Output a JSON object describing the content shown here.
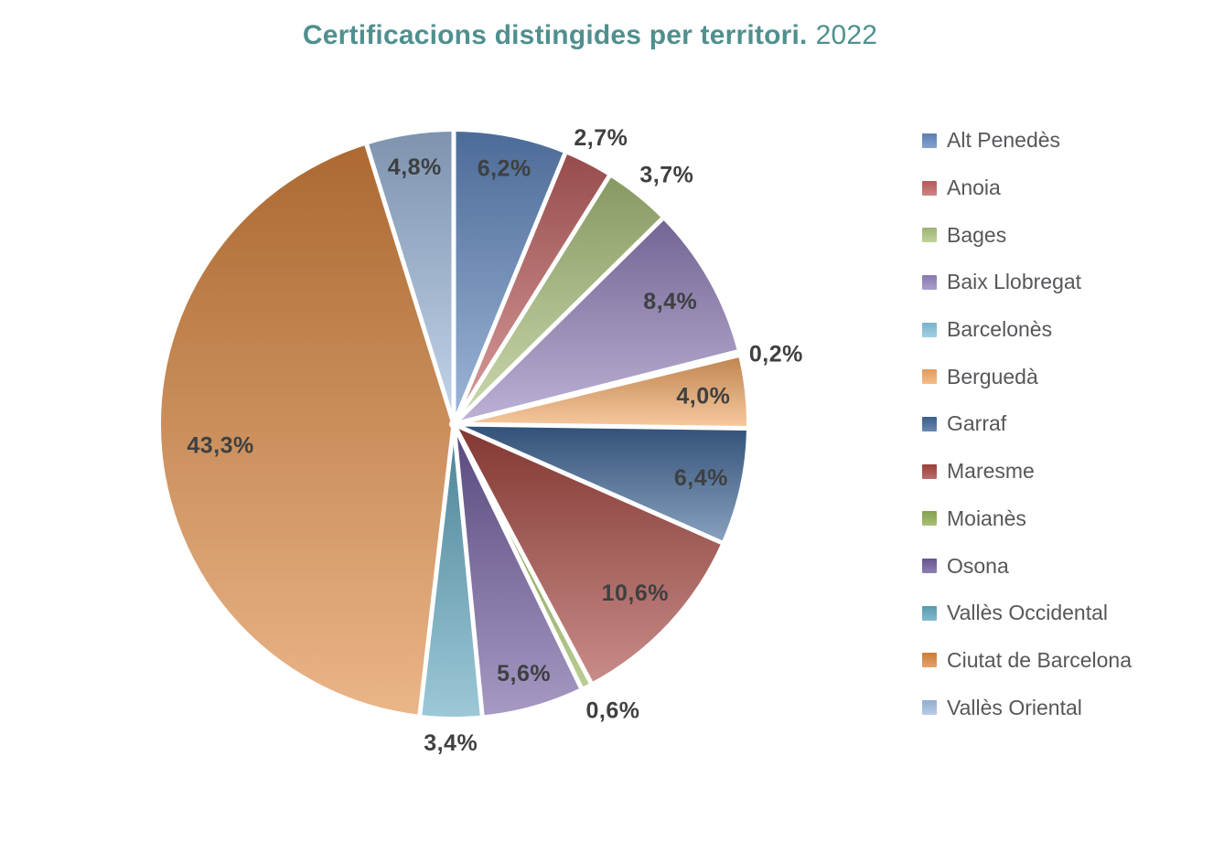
{
  "title": {
    "main": "Certificacions distingides per territori.",
    "year": "2022"
  },
  "colors": {
    "background": "#ffffff",
    "title": "#4f908e",
    "pie_label": "#3e4041",
    "legend_text": "#55575a",
    "slice_gap": "#ffffff"
  },
  "chart_data": {
    "type": "pie",
    "title": "Certificacions distingides per territori. 2022",
    "legend_position": "right",
    "start_angle_deg": 0,
    "direction": "clockwise",
    "value_unit": "%",
    "slices": [
      {
        "label": "Alt Penedès",
        "value": 6.2,
        "display": "6,2%",
        "color": "#6289c1",
        "label_inside": true,
        "label_r": 0.89
      },
      {
        "label": "Anoia",
        "value": 2.7,
        "display": "2,7%",
        "color": "#c26261",
        "label_inside": false,
        "label_r": 1.1
      },
      {
        "label": "Bages",
        "value": 3.7,
        "display": "3,7%",
        "color": "#adc47e",
        "label_inside": false,
        "label_r": 1.12,
        "label_da": 1.8
      },
      {
        "label": "Baix Llobregat",
        "value": 8.4,
        "display": "8,4%",
        "color": "#9482bd",
        "label_inside": true,
        "label_r": 0.85
      },
      {
        "label": "Barcelonès",
        "value": 0.2,
        "display": "0,2%",
        "color": "#85c2dc",
        "label_inside": false,
        "label_r": 1.127,
        "label_da": 1.7
      },
      {
        "label": "Berguedà",
        "value": 4.0,
        "display": "4,0%",
        "color": "#f4a965",
        "label_inside": true,
        "label_r": 0.858
      },
      {
        "label": "Garraf",
        "value": 6.4,
        "display": "6,4%",
        "color": "#3f6798",
        "label_inside": true,
        "label_r": 0.865
      },
      {
        "label": "Maresme",
        "value": 10.6,
        "display": "10,6%",
        "color": "#a7453f",
        "label_inside": true,
        "label_r": 0.847
      },
      {
        "label": "Moianès",
        "value": 0.6,
        "display": "0,6%",
        "color": "#8fae52",
        "label_inside": false,
        "label_r": 1.12,
        "label_da": -2.2
      },
      {
        "label": "Osona",
        "value": 5.6,
        "display": "5,6%",
        "color": "#6f5b9f",
        "label_inside": true,
        "label_r": 0.886
      },
      {
        "label": "Vallès Occidental",
        "value": 3.4,
        "display": "3,4%",
        "color": "#5fa7bf",
        "label_inside": false,
        "label_r": 1.09
      },
      {
        "label": "Ciutat de Barcelona",
        "value": 43.3,
        "display": "43,3%",
        "color": "#dd873f",
        "label_inside": true,
        "label_r": 0.8
      },
      {
        "label": "Vallès Oriental",
        "value": 4.8,
        "display": "4,8%",
        "color": "#a0bcdf",
        "label_inside": true,
        "label_r": 0.888
      }
    ]
  }
}
